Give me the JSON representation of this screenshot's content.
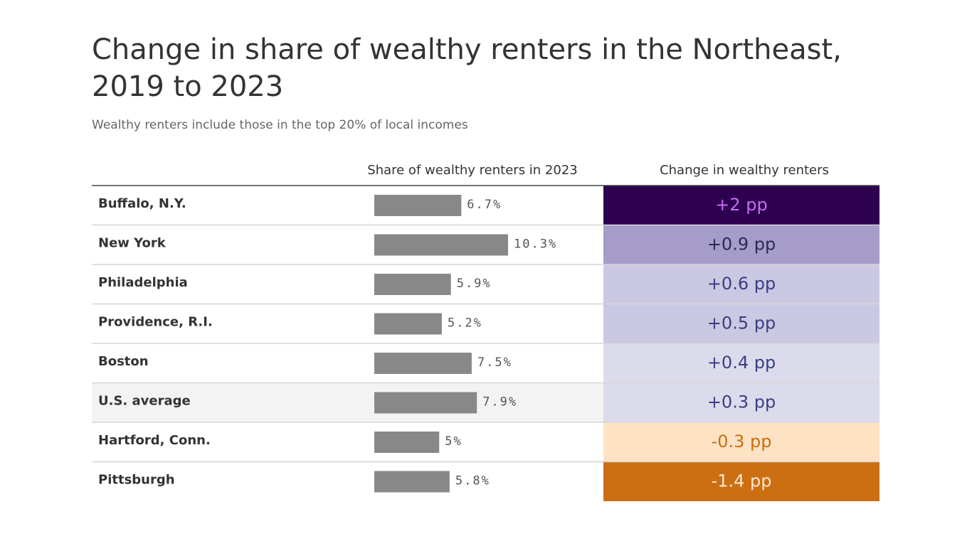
{
  "chart_data": {
    "type": "bar",
    "title": "Change in share of wealthy renters in the Northeast, 2019 to 2023",
    "subtitle": "Wealthy renters include those in the top 20% of local incomes",
    "columns": [
      "Share of wealthy renters in 2023",
      "Change in wealthy renters"
    ],
    "categories": [
      "Buffalo, N.Y.",
      "New York",
      "Philadelphia",
      "Providence, R.I.",
      "Boston",
      "U.S. average",
      "Hartford, Conn.",
      "Pittsburgh"
    ],
    "values": [
      6.7,
      10.3,
      5.9,
      5.2,
      7.5,
      7.9,
      5,
      5.8
    ],
    "value_labels": [
      "6.7%",
      "10.3%",
      "5.9%",
      "5.2%",
      "7.5%",
      "7.9%",
      "5%",
      "5.8%"
    ],
    "color": "#888888",
    "change_values": [
      2,
      0.9,
      0.6,
      0.5,
      0.4,
      0.3,
      -0.3,
      -1.4
    ],
    "change_labels": [
      "+2 pp",
      "+0.9 pp",
      "+0.6 pp",
      "+0.5 pp",
      "+0.4 pp",
      "+0.3 pp",
      "-0.3 pp",
      "-1.4 pp"
    ],
    "change_colors": [
      "#2e0050",
      "#a59cc8",
      "#cbc8e3",
      "#cbc8e3",
      "#dcdbec",
      "#dcdbec",
      "#fde2c4",
      "#cc6e12"
    ],
    "change_text_colors": [
      "#c86bf5",
      "#2a2a5a",
      "#3b3f80",
      "#3b3f80",
      "#3b3f80",
      "#3b3f80",
      "#c76f12",
      "#fde8d0"
    ],
    "highlight_row": 5
  }
}
